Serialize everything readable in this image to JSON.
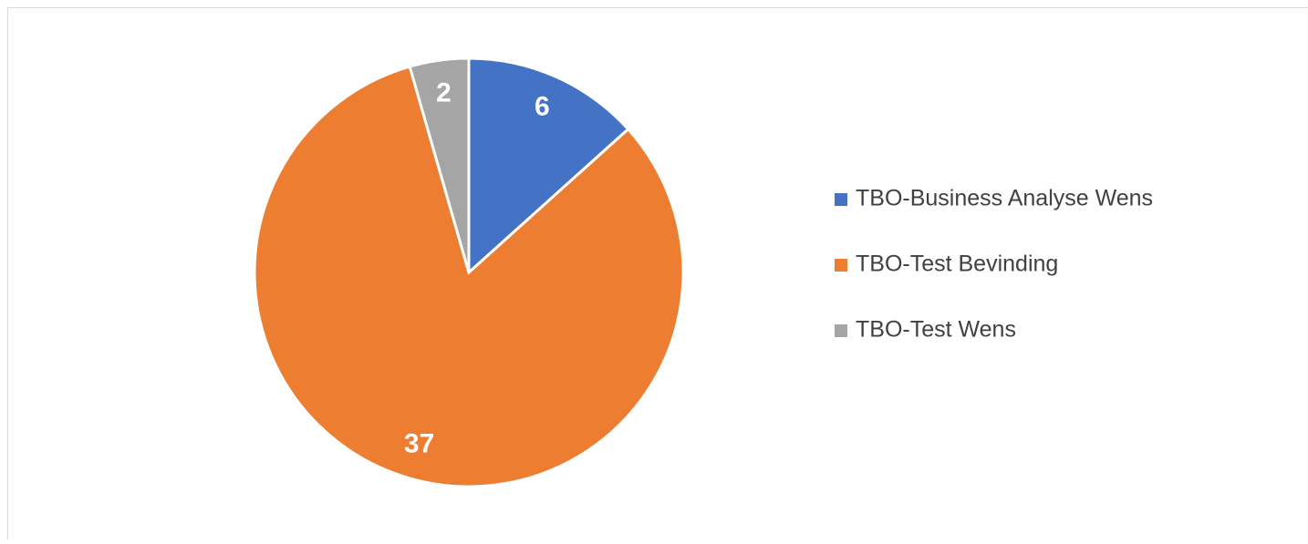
{
  "chart_data": {
    "type": "pie",
    "categories": [
      "TBO-Business Analyse Wens",
      "TBO-Test Bevinding",
      "TBO-Test Wens"
    ],
    "values": [
      6,
      37,
      2
    ],
    "colors": [
      "#4472c4",
      "#ed7d31",
      "#a5a5a5"
    ],
    "legend": "right"
  }
}
